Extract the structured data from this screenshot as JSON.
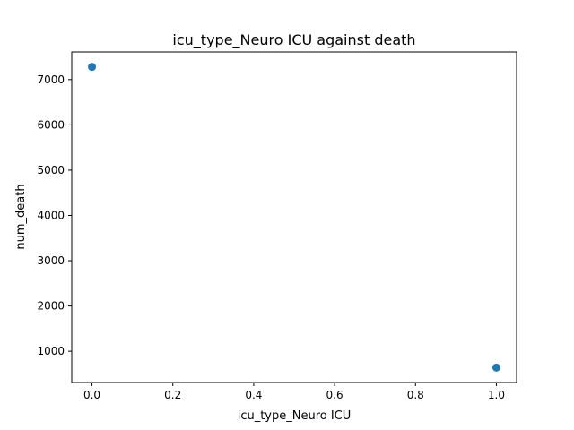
{
  "chart_data": {
    "type": "scatter",
    "title": "icu_type_Neuro ICU against death",
    "xlabel": "icu_type_Neuro ICU",
    "ylabel": "num_death",
    "xlim": [
      -0.05,
      1.05
    ],
    "ylim": [
      310,
      7610
    ],
    "x_ticks": [
      0.0,
      0.2,
      0.4,
      0.6,
      0.8,
      1.0
    ],
    "x_tick_labels": [
      "0.0",
      "0.2",
      "0.4",
      "0.6",
      "0.8",
      "1.0"
    ],
    "y_ticks": [
      1000,
      2000,
      3000,
      4000,
      5000,
      6000,
      7000
    ],
    "y_tick_labels": [
      "1000",
      "2000",
      "3000",
      "4000",
      "5000",
      "6000",
      "7000"
    ],
    "grid": false,
    "marker_color": "#1f77b4",
    "points": [
      {
        "x": 0,
        "y": 7280
      },
      {
        "x": 1,
        "y": 640
      }
    ]
  }
}
